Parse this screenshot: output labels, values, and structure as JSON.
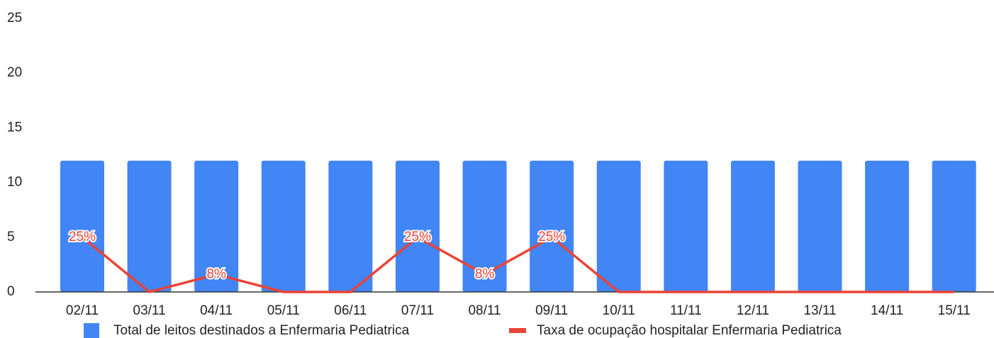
{
  "chart_data": {
    "type": "bar",
    "categories": [
      "02/11",
      "03/11",
      "04/11",
      "05/11",
      "06/11",
      "07/11",
      "08/11",
      "09/11",
      "10/11",
      "11/11",
      "12/11",
      "13/11",
      "14/11",
      "15/11"
    ],
    "series": [
      {
        "name": "Total de leitos destinados a Enfermaria Pediatrica",
        "type": "bar",
        "color": "#4285f4",
        "values": [
          12,
          12,
          12,
          12,
          12,
          12,
          12,
          12,
          12,
          12,
          12,
          12,
          12,
          12
        ]
      },
      {
        "name": "Taxa de ocupação hospitalar Enfermaria Pediatrica",
        "type": "line",
        "axis": "y2",
        "color": "#ea4335",
        "values": [
          25,
          0,
          8,
          0,
          0,
          25,
          8,
          25,
          0,
          0,
          0,
          0,
          0,
          0
        ],
        "value_labels": [
          "25%",
          null,
          "8%",
          null,
          null,
          "25%",
          "8%",
          "25%",
          null,
          null,
          null,
          null,
          null,
          null
        ]
      }
    ],
    "ylim": [
      0,
      25
    ],
    "yticks": [
      0,
      5,
      10,
      15,
      20,
      25
    ],
    "y2lim": [
      0,
      125
    ],
    "grid": false,
    "legend": "bottom"
  }
}
